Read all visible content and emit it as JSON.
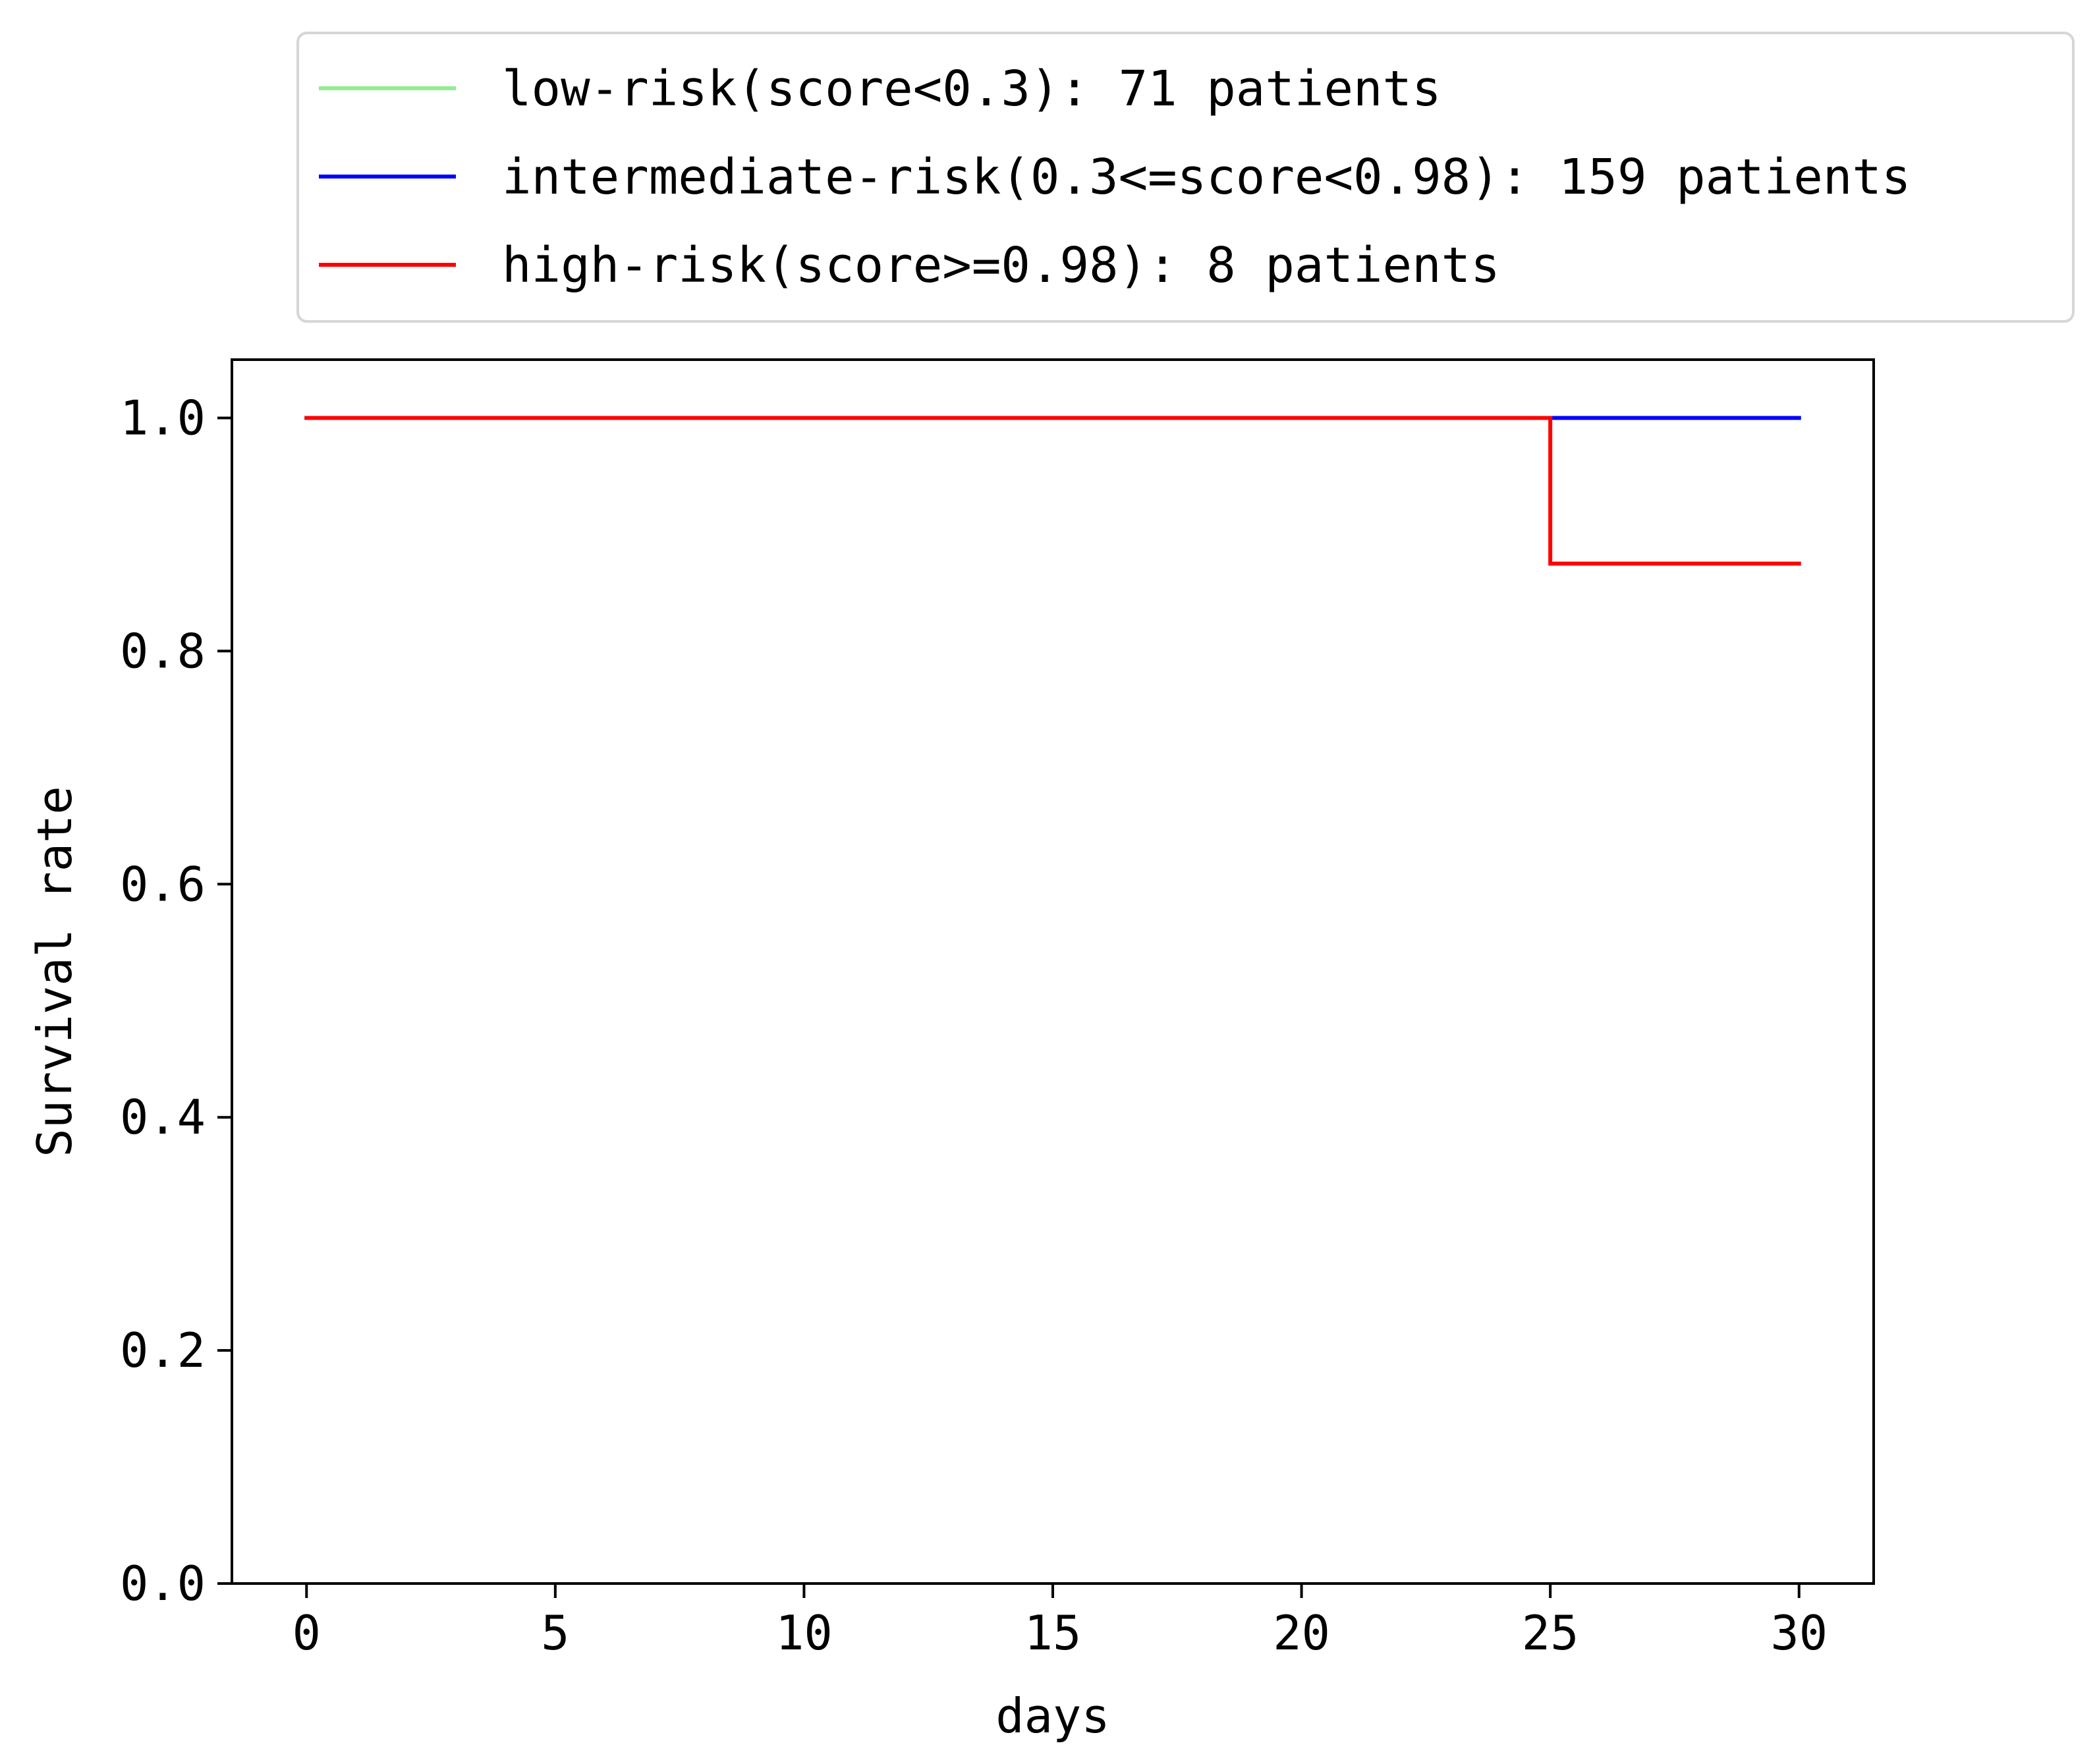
{
  "chart_data": {
    "type": "line",
    "step": true,
    "title": "",
    "xlabel": "days",
    "ylabel": "Survival rate",
    "xlim": [
      -1.5,
      31.5
    ],
    "ylim": [
      0.0,
      1.05
    ],
    "xticks": [
      0,
      5,
      10,
      15,
      20,
      25,
      30
    ],
    "xtick_labels": [
      "0",
      "5",
      "10",
      "15",
      "20",
      "25",
      "30"
    ],
    "yticks": [
      0.0,
      0.2,
      0.4,
      0.6,
      0.8,
      1.0
    ],
    "ytick_labels": [
      "0.0",
      "0.2",
      "0.4",
      "0.6",
      "0.8",
      "1.0"
    ],
    "grid": false,
    "legend_position": "above plot",
    "series": [
      {
        "name": "low-risk(score<0.3): 71 patients",
        "color": "#90ee90",
        "x": [
          0,
          30
        ],
        "y": [
          1.0,
          1.0
        ]
      },
      {
        "name": "intermediate-risk(0.3<=score<0.98): 159 patients",
        "color": "#0000ff",
        "x": [
          0,
          30
        ],
        "y": [
          1.0,
          1.0
        ]
      },
      {
        "name": "high-risk(score>=0.98): 8 patients",
        "color": "#ff0000",
        "x": [
          0,
          25,
          30
        ],
        "y": [
          1.0,
          0.875,
          0.875
        ]
      }
    ]
  }
}
